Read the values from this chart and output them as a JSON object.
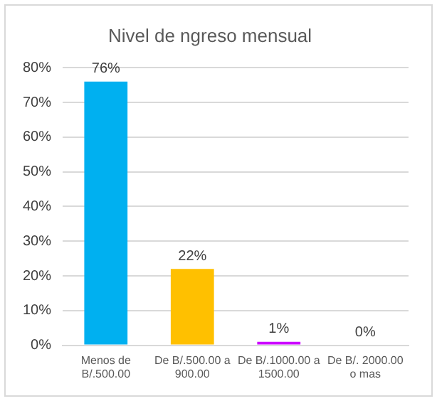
{
  "chart_data": {
    "type": "bar",
    "title": "Nivel de ngreso mensual",
    "categories": [
      "Menos de B/.500.00",
      "De B/.500.00 a 900.00",
      "De B/.1000.00 a 1500.00",
      "De B/. 2000.00 o mas"
    ],
    "values": [
      76,
      22,
      1,
      0
    ],
    "colors": [
      "#00b0f0",
      "#ffc000",
      "#cc00ff",
      "#a5a5a5"
    ],
    "value_labels": [
      "76%",
      "22%",
      "1%",
      "0%"
    ],
    "ylim": [
      0,
      80
    ],
    "yticks": [
      {
        "value": 0,
        "label": "0%"
      },
      {
        "value": 10,
        "label": "10%"
      },
      {
        "value": 20,
        "label": "20%"
      },
      {
        "value": 30,
        "label": "30%"
      },
      {
        "value": 40,
        "label": "40%"
      },
      {
        "value": 50,
        "label": "50%"
      },
      {
        "value": 60,
        "label": "60%"
      },
      {
        "value": 70,
        "label": "70%"
      },
      {
        "value": 80,
        "label": "80%"
      }
    ],
    "grid": "y",
    "legend": false
  }
}
